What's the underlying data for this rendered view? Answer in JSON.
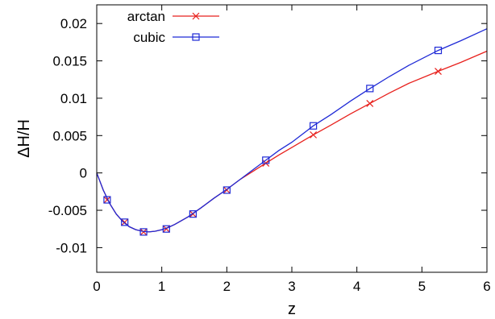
{
  "chart_data": {
    "type": "line",
    "xlabel": "z",
    "ylabel": "ΔH/H",
    "xlim": [
      0,
      6
    ],
    "ylim": [
      -0.0133,
      0.0225
    ],
    "x_ticks": [
      0,
      1,
      2,
      3,
      4,
      5,
      6
    ],
    "y_ticks": [
      -0.01,
      -0.005,
      0,
      0.005,
      0.01,
      0.015,
      0.02
    ],
    "y_tick_labels": [
      "-0.01",
      "-0.005",
      "0",
      "0.005",
      "0.01",
      "0.015",
      "0.02"
    ],
    "legend_position": "top-left",
    "grid": false,
    "series": [
      {
        "name": "arctan",
        "color": "#e8211d",
        "marker": "cross",
        "curve_x": [
          0,
          0.1,
          0.2,
          0.3,
          0.4,
          0.5,
          0.6,
          0.7,
          0.8,
          0.9,
          1.0,
          1.1,
          1.2,
          1.4,
          1.6,
          1.8,
          2.0,
          2.2,
          2.4,
          2.6,
          2.8,
          3.0,
          3.33,
          3.6,
          3.9,
          4.2,
          4.5,
          4.8,
          5.25,
          5.6,
          6.0
        ],
        "curve_y": [
          0,
          -0.0023,
          -0.0041,
          -0.0055,
          -0.0065,
          -0.0072,
          -0.0076,
          -0.0078,
          -0.0079,
          -0.0078,
          -0.0076,
          -0.0073,
          -0.0069,
          -0.0059,
          -0.0047,
          -0.0034,
          -0.0022,
          -0.0009,
          0.0002,
          0.0013,
          0.0024,
          0.0034,
          0.0051,
          0.0064,
          0.0079,
          0.0093,
          0.0107,
          0.012,
          0.0136,
          0.0148,
          0.0163
        ],
        "marker_x": [
          0.16,
          0.43,
          0.72,
          1.07,
          1.48,
          2.0,
          2.6,
          3.33,
          4.2,
          5.25
        ],
        "marker_y": [
          -0.0036,
          -0.0066,
          -0.0079,
          -0.0075,
          -0.0055,
          -0.0023,
          0.0013,
          0.0051,
          0.0093,
          0.0136
        ]
      },
      {
        "name": "cubic",
        "color": "#1f2ad6",
        "marker": "square",
        "curve_x": [
          0,
          0.1,
          0.2,
          0.3,
          0.4,
          0.5,
          0.6,
          0.7,
          0.8,
          0.9,
          1.0,
          1.1,
          1.2,
          1.4,
          1.6,
          1.8,
          2.0,
          2.2,
          2.4,
          2.6,
          2.8,
          3.0,
          3.33,
          3.6,
          3.9,
          4.2,
          4.5,
          4.8,
          5.25,
          5.6,
          6.0
        ],
        "curve_y": [
          0,
          -0.0023,
          -0.0041,
          -0.0055,
          -0.0065,
          -0.0072,
          -0.0076,
          -0.0078,
          -0.0079,
          -0.0078,
          -0.0076,
          -0.0073,
          -0.0069,
          -0.0059,
          -0.0047,
          -0.0034,
          -0.0022,
          -0.0009,
          0.0004,
          0.0017,
          0.003,
          0.0041,
          0.0063,
          0.0078,
          0.0096,
          0.0113,
          0.0129,
          0.0144,
          0.0164,
          0.0177,
          0.0193
        ],
        "marker_x": [
          0.16,
          0.43,
          0.72,
          1.07,
          1.48,
          2.0,
          2.6,
          3.33,
          4.2,
          5.25
        ],
        "marker_y": [
          -0.0036,
          -0.0066,
          -0.0079,
          -0.0075,
          -0.0055,
          -0.0023,
          0.0017,
          0.0063,
          0.0113,
          0.0164
        ]
      }
    ]
  }
}
